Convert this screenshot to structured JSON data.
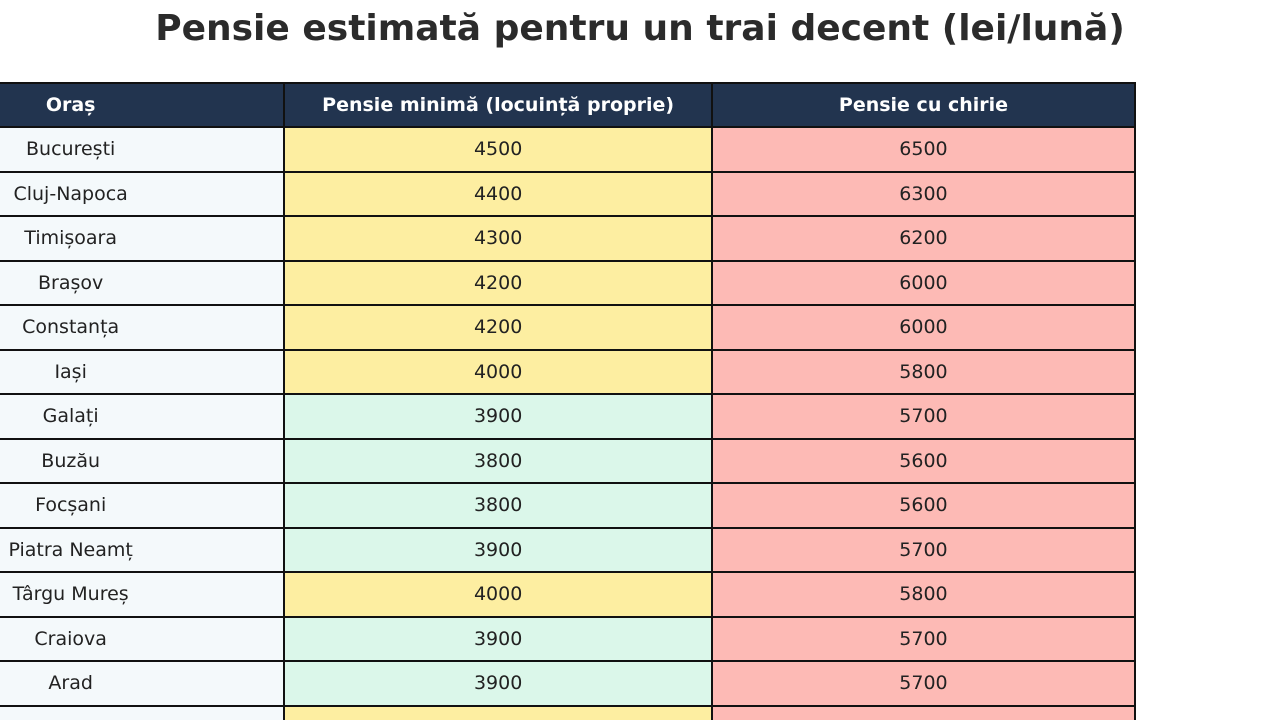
{
  "title": "Pensie estimată pentru un trai decent (lei/lună)",
  "table": {
    "header": [
      "Oraș",
      "Pensie minimă (locuință proprie)",
      "Pensie cu chirie"
    ],
    "header_color": "#22344f",
    "city_color": "#f4f9fb",
    "rent_color": "#fdbab5",
    "rows": [
      {
        "city": "București",
        "min": 4500,
        "rent": 6500,
        "min_color": "#fdeea1"
      },
      {
        "city": "Cluj-Napoca",
        "min": 4400,
        "rent": 6300,
        "min_color": "#fdeea1"
      },
      {
        "city": "Timișoara",
        "min": 4300,
        "rent": 6200,
        "min_color": "#fdeea1"
      },
      {
        "city": "Brașov",
        "min": 4200,
        "rent": 6000,
        "min_color": "#fdeea1"
      },
      {
        "city": "Constanța",
        "min": 4200,
        "rent": 6000,
        "min_color": "#fdeea1"
      },
      {
        "city": "Iași",
        "min": 4000,
        "rent": 5800,
        "min_color": "#fdeea1"
      },
      {
        "city": "Galați",
        "min": 3900,
        "rent": 5700,
        "min_color": "#dbf7ea"
      },
      {
        "city": "Buzău",
        "min": 3800,
        "rent": 5600,
        "min_color": "#dbf7ea"
      },
      {
        "city": "Focșani",
        "min": 3800,
        "rent": 5600,
        "min_color": "#dbf7ea"
      },
      {
        "city": "Piatra Neamț",
        "min": 3900,
        "rent": 5700,
        "min_color": "#dbf7ea"
      },
      {
        "city": "Târgu Mureș",
        "min": 4000,
        "rent": 5800,
        "min_color": "#fdeea1"
      },
      {
        "city": "Craiova",
        "min": 3900,
        "rent": 5700,
        "min_color": "#dbf7ea"
      },
      {
        "city": "Arad",
        "min": 3900,
        "rent": 5700,
        "min_color": "#dbf7ea"
      }
    ]
  }
}
